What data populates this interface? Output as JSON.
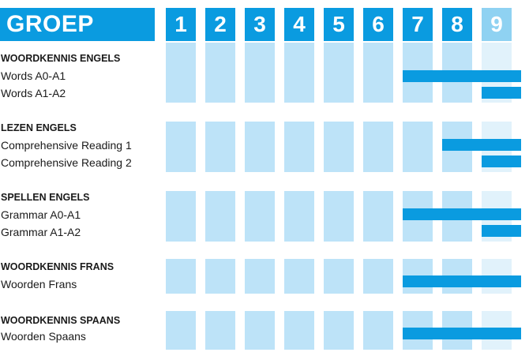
{
  "header": {
    "title": "GROEP"
  },
  "groups": [
    "1",
    "2",
    "3",
    "4",
    "5",
    "6",
    "7",
    "8",
    "9"
  ],
  "colors": {
    "header_bg": "#0a9be0",
    "header_bg_last": "#8fd2f2",
    "column_bg": "#bde3f8",
    "column_bg_last": "#e1f2fb",
    "bar": "#0a9be0"
  },
  "sections": [
    {
      "title": "WOORDKENNIS ENGELS",
      "items": [
        {
          "label": "Words A0-A1",
          "start_group": 7
        },
        {
          "label": "Words A1-A2",
          "start_group": 9
        }
      ]
    },
    {
      "title": "LEZEN ENGELS",
      "items": [
        {
          "label": "Comprehensive Reading 1",
          "start_group": 8
        },
        {
          "label": "Comprehensive Reading 2",
          "start_group": 9
        }
      ]
    },
    {
      "title": "SPELLEN ENGELS",
      "items": [
        {
          "label": "Grammar A0-A1",
          "start_group": 7
        },
        {
          "label": "Grammar A1-A2",
          "start_group": 9
        }
      ]
    },
    {
      "title": "WOORDKENNIS FRANS",
      "items": [
        {
          "label": "Woorden Frans",
          "start_group": 7
        }
      ]
    },
    {
      "title": "WOORDKENNIS SPAANS",
      "items": [
        {
          "label": "Woorden Spaans",
          "start_group": 7
        }
      ]
    }
  ]
}
